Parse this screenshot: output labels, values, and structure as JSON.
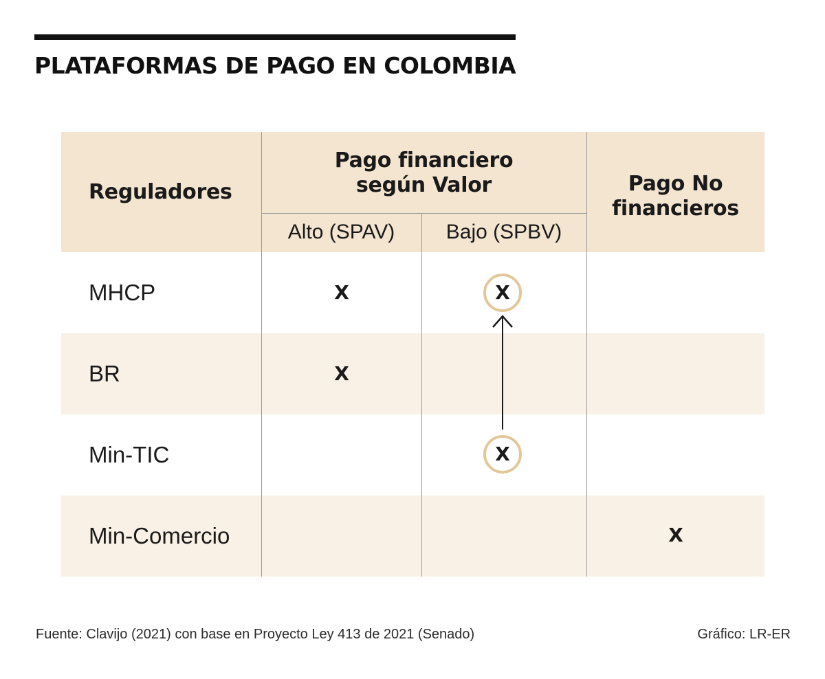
{
  "title": "PLATAFORMAS DE PAGO EN COLOMBIA",
  "table": {
    "header_regulators": "Reguladores",
    "header_group": "Pago financiero\nsegún Valor",
    "header_group_line1": "Pago financiero",
    "header_group_line2": "según Valor",
    "sub_alto": "Alto (SPAV)",
    "sub_bajo": "Bajo (SPBV)",
    "header_nofin_line1": "Pago No",
    "header_nofin_line2": "financieros",
    "mark_symbol": "X",
    "rows": [
      {
        "label": "MHCP",
        "alto": "X",
        "bajo": "X",
        "no_financieros": ""
      },
      {
        "label": "BR",
        "alto": "X",
        "bajo": "",
        "no_financieros": ""
      },
      {
        "label": "Min-TIC",
        "alto": "",
        "bajo": "X",
        "no_financieros": ""
      },
      {
        "label": "Min-Comercio",
        "alto": "",
        "bajo": "",
        "no_financieros": "X"
      }
    ]
  },
  "footer": {
    "source": "Fuente: Clavijo (2021) con base en Proyecto Ley  413 de  2021 (Senado)",
    "credit": "Gráfico: LR-ER"
  },
  "colors": {
    "header_bg": "#f4e5d1",
    "alt_row_bg": "#f9f1e6",
    "circle": "#e2c898",
    "rule": "#111111"
  }
}
